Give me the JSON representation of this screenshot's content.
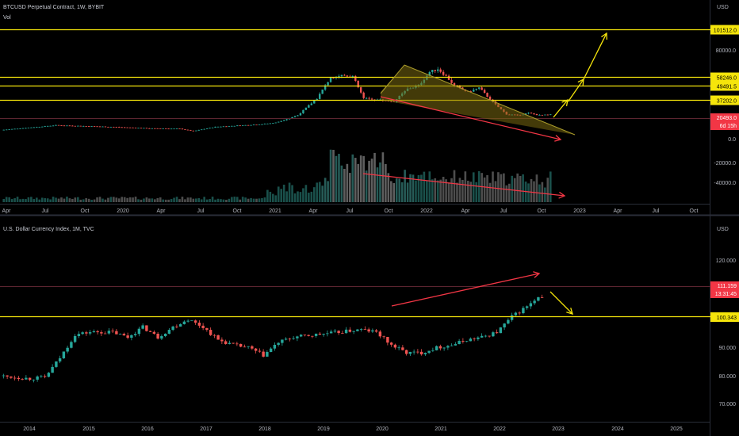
{
  "top_pane": {
    "title": "BTCUSD Perpetual Contract, 1W, BYBIT",
    "vol_label": "Vol",
    "currency": "USD"
  },
  "bottom_pane": {
    "title": "U.S. Dollar Currency Index, 1M, TVC",
    "currency": "USD"
  },
  "colors": {
    "up": "#26a69a",
    "down": "#ef5350",
    "hline": "#f5e50b",
    "trend_red": "#f23645",
    "arrow_yellow": "#f5e50b",
    "wedge_fill": "#7a6a10",
    "price_tag": "#f23645"
  },
  "chart_data": [
    {
      "type": "candlestick",
      "title": "BTCUSD Perpetual Contract, 1W, BYBIT",
      "price_axis_labels": [
        "80000.0",
        "0.0",
        "-20000.0",
        "-40000.0"
      ],
      "time_axis_labels": [
        "Apr",
        "Jul",
        "Oct",
        "2020",
        "Apr",
        "Jul",
        "Oct",
        "2021",
        "Apr",
        "Jul",
        "Oct",
        "2022",
        "Apr",
        "Jul",
        "Oct",
        "2023",
        "Apr",
        "Jul",
        "Oct"
      ],
      "horizontal_levels": [
        {
          "label": "101512.0"
        },
        {
          "label": "58246.0"
        },
        {
          "label": "49491.5"
        },
        {
          "label": "37202.0"
        }
      ],
      "current_price": {
        "label": "20493.0",
        "countdown": "6d 15h"
      },
      "series_summary": {
        "start_2019": 6000,
        "peak_2021_a": 64000,
        "low_2021": 30000,
        "peak_2021_b": 69000,
        "late_2022": 20000
      },
      "volume_label": "Vol"
    },
    {
      "type": "candlestick",
      "title": "U.S. Dollar Currency Index, 1M, TVC",
      "price_axis_labels": [
        "120.000",
        "90.000",
        "80.000",
        "70.000"
      ],
      "time_axis_labels": [
        "2014",
        "2015",
        "2016",
        "2017",
        "2018",
        "2019",
        "2020",
        "2021",
        "2022",
        "2023",
        "2024",
        "2025"
      ],
      "horizontal_levels": [
        {
          "label": "100.343"
        }
      ],
      "current_price": {
        "label": "111.159",
        "countdown": "13:31:45"
      }
    }
  ]
}
